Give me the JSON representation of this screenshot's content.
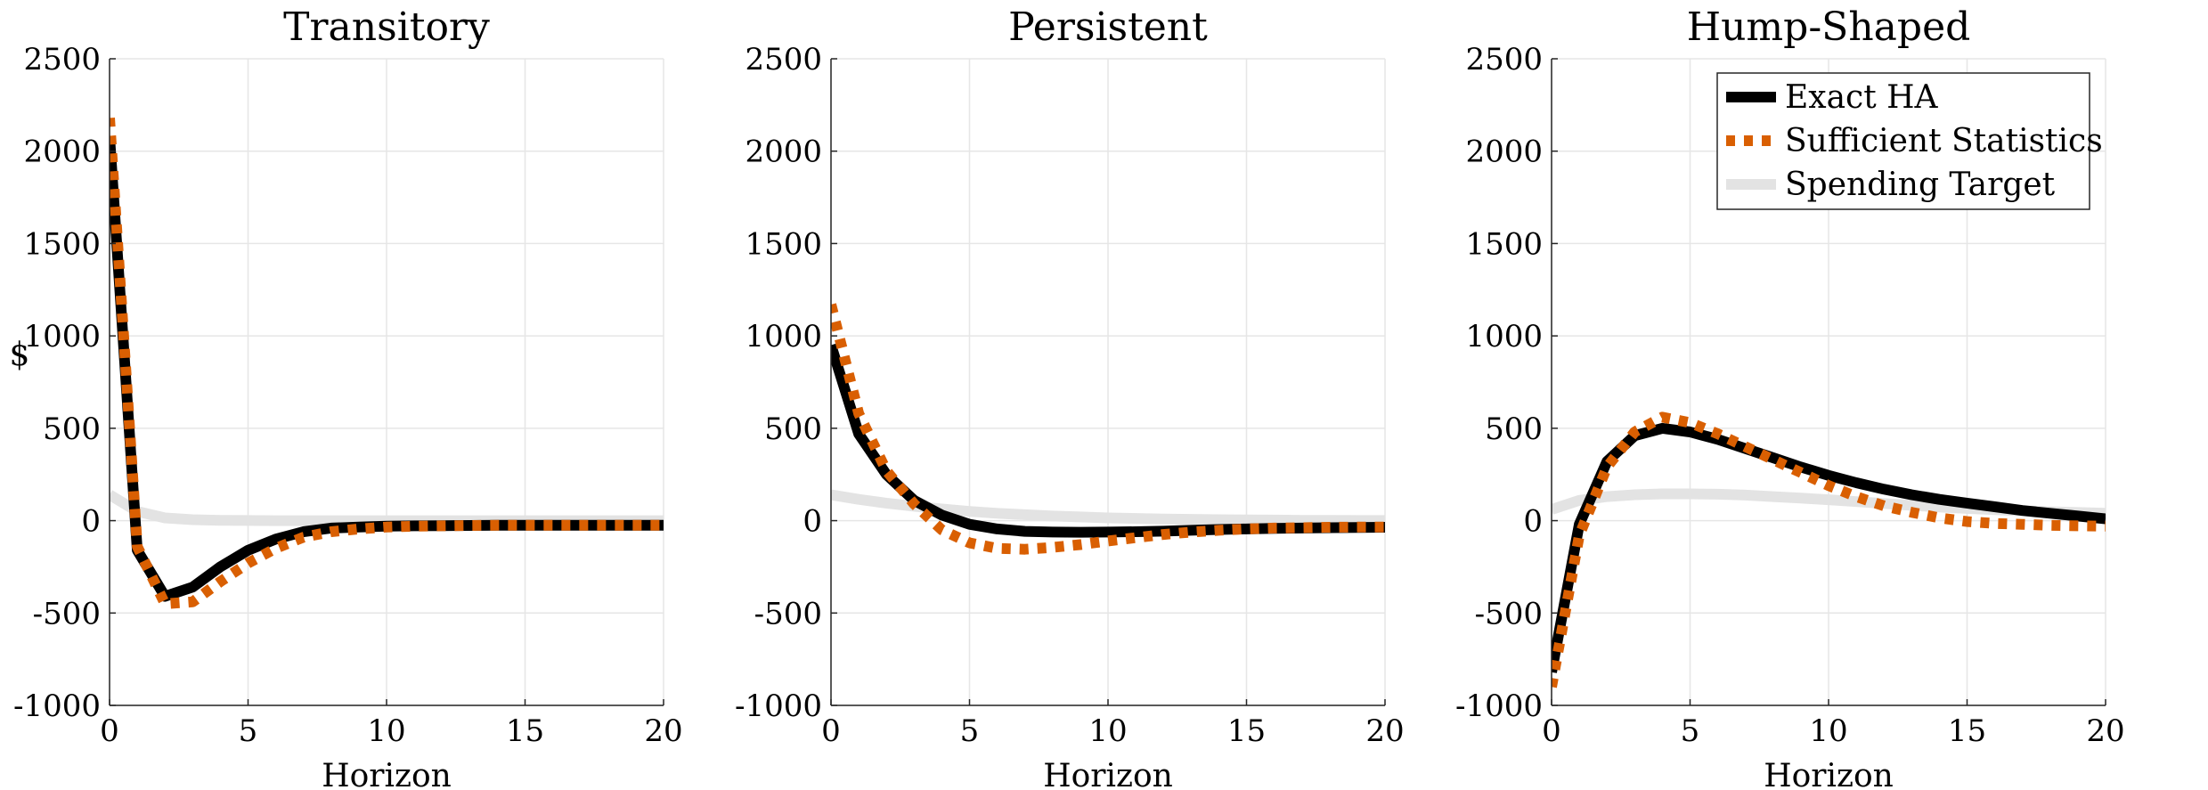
{
  "figure": {
    "ylabel": "$",
    "legend": {
      "placement": "top-right",
      "panel": 2,
      "entries": [
        {
          "label": "Exact HA",
          "color": "#000000",
          "style": "solid-thick"
        },
        {
          "label": "Sufficient Statistics",
          "color": "#d95f02",
          "style": "dotted"
        },
        {
          "label": "Spending Target",
          "color": "#e3e3e3",
          "style": "solid-thick"
        }
      ]
    }
  },
  "chart_data": [
    {
      "type": "line",
      "title": "Transitory",
      "xlabel": "Horizon",
      "ylabel": "$",
      "xlim": [
        0,
        20
      ],
      "ylim": [
        -1000,
        2500
      ],
      "xticks": [
        0,
        5,
        10,
        15,
        20
      ],
      "yticks": [
        -1000,
        -500,
        0,
        500,
        1000,
        1500,
        2000,
        2500
      ],
      "grid": true,
      "x": [
        0,
        1,
        2,
        3,
        4,
        5,
        6,
        7,
        8,
        9,
        10,
        11,
        12,
        13,
        14,
        15,
        16,
        17,
        18,
        19,
        20
      ],
      "series": [
        {
          "name": "Exact HA",
          "values": [
            2080,
            -160,
            -410,
            -360,
            -250,
            -160,
            -100,
            -60,
            -40,
            -35,
            -30,
            -28,
            -27,
            -26,
            -25,
            -25,
            -25,
            -25,
            -25,
            -25,
            -25
          ]
        },
        {
          "name": "Sufficient Statistics",
          "values": [
            2180,
            -140,
            -450,
            -440,
            -330,
            -230,
            -150,
            -90,
            -60,
            -45,
            -35,
            -30,
            -28,
            -26,
            -25,
            -25,
            -25,
            -25,
            -25,
            -25,
            -25
          ]
        },
        {
          "name": "Spending Target",
          "values": [
            140,
            50,
            15,
            5,
            2,
            1,
            0,
            0,
            0,
            0,
            0,
            0,
            0,
            0,
            0,
            0,
            0,
            0,
            0,
            0,
            0
          ]
        }
      ]
    },
    {
      "type": "line",
      "title": "Persistent",
      "xlabel": "Horizon",
      "ylabel": "",
      "xlim": [
        0,
        20
      ],
      "ylim": [
        -1000,
        2500
      ],
      "xticks": [
        0,
        5,
        10,
        15,
        20
      ],
      "yticks": [
        -1000,
        -500,
        0,
        500,
        1000,
        1500,
        2000,
        2500
      ],
      "grid": true,
      "x": [
        0,
        1,
        2,
        3,
        4,
        5,
        6,
        7,
        8,
        9,
        10,
        11,
        12,
        13,
        14,
        15,
        16,
        17,
        18,
        19,
        20
      ],
      "series": [
        {
          "name": "Exact HA",
          "values": [
            950,
            470,
            250,
            110,
            30,
            -20,
            -45,
            -58,
            -62,
            -63,
            -62,
            -60,
            -57,
            -52,
            -48,
            -45,
            -42,
            -40,
            -38,
            -37,
            -36
          ]
        },
        {
          "name": "Sufficient Statistics",
          "values": [
            1170,
            580,
            270,
            90,
            -50,
            -120,
            -150,
            -155,
            -145,
            -130,
            -110,
            -92,
            -75,
            -62,
            -52,
            -45,
            -40,
            -38,
            -36,
            -35,
            -35
          ]
        },
        {
          "name": "Spending Target",
          "values": [
            140,
            115,
            95,
            78,
            63,
            50,
            40,
            32,
            25,
            20,
            15,
            12,
            9,
            7,
            5,
            4,
            3,
            2,
            2,
            1,
            1
          ]
        }
      ]
    },
    {
      "type": "line",
      "title": "Hump-Shaped",
      "xlabel": "Horizon",
      "ylabel": "",
      "xlim": [
        0,
        20
      ],
      "ylim": [
        -1000,
        2500
      ],
      "xticks": [
        0,
        5,
        10,
        15,
        20
      ],
      "yticks": [
        -1000,
        -500,
        0,
        500,
        1000,
        1500,
        2000,
        2500
      ],
      "grid": true,
      "x": [
        0,
        1,
        2,
        3,
        4,
        5,
        6,
        7,
        8,
        9,
        10,
        11,
        12,
        13,
        14,
        15,
        16,
        17,
        18,
        19,
        20
      ],
      "series": [
        {
          "name": "Exact HA",
          "values": [
            -820,
            -20,
            320,
            460,
            500,
            480,
            440,
            390,
            340,
            290,
            245,
            205,
            170,
            140,
            115,
            95,
            75,
            55,
            40,
            25,
            10
          ]
        },
        {
          "name": "Sufficient Statistics",
          "values": [
            -900,
            -80,
            290,
            480,
            560,
            530,
            470,
            400,
            330,
            260,
            190,
            130,
            80,
            45,
            15,
            -5,
            -15,
            -20,
            -25,
            -28,
            -30
          ]
        },
        {
          "name": "Spending Target",
          "values": [
            60,
            110,
            130,
            140,
            145,
            145,
            143,
            138,
            130,
            122,
            113,
            103,
            93,
            83,
            74,
            66,
            59,
            53,
            48,
            44,
            40
          ]
        }
      ]
    }
  ]
}
